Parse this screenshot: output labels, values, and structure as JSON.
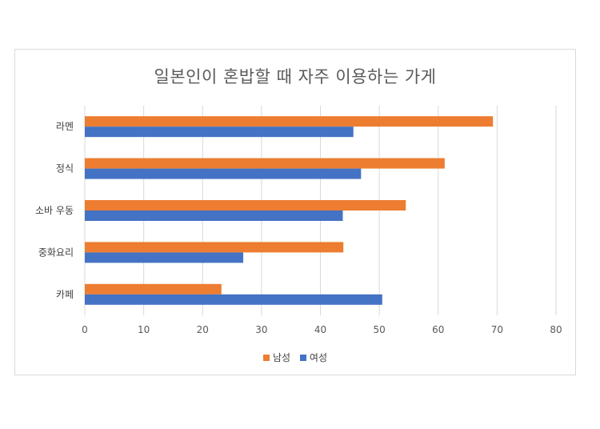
{
  "chart_data": {
    "type": "bar",
    "orientation": "horizontal",
    "title": "일본인이 혼밥할 때 자주 이용하는 가게",
    "categories": [
      "라멘",
      "정식",
      "소바 우동",
      "중화요리",
      "카페"
    ],
    "series": [
      {
        "name": "남성",
        "color": "#ED7D31",
        "values": [
          69.3,
          61.1,
          54.5,
          43.9,
          23.2
        ]
      },
      {
        "name": "여성",
        "color": "#4472C4",
        "values": [
          45.6,
          46.9,
          43.8,
          26.9,
          50.5
        ]
      }
    ],
    "xlim": [
      0,
      80
    ],
    "xticks": [
      "0",
      "10",
      "20",
      "30",
      "40",
      "50",
      "60",
      "70",
      "80"
    ],
    "grid": true,
    "legend_position": "bottom"
  }
}
